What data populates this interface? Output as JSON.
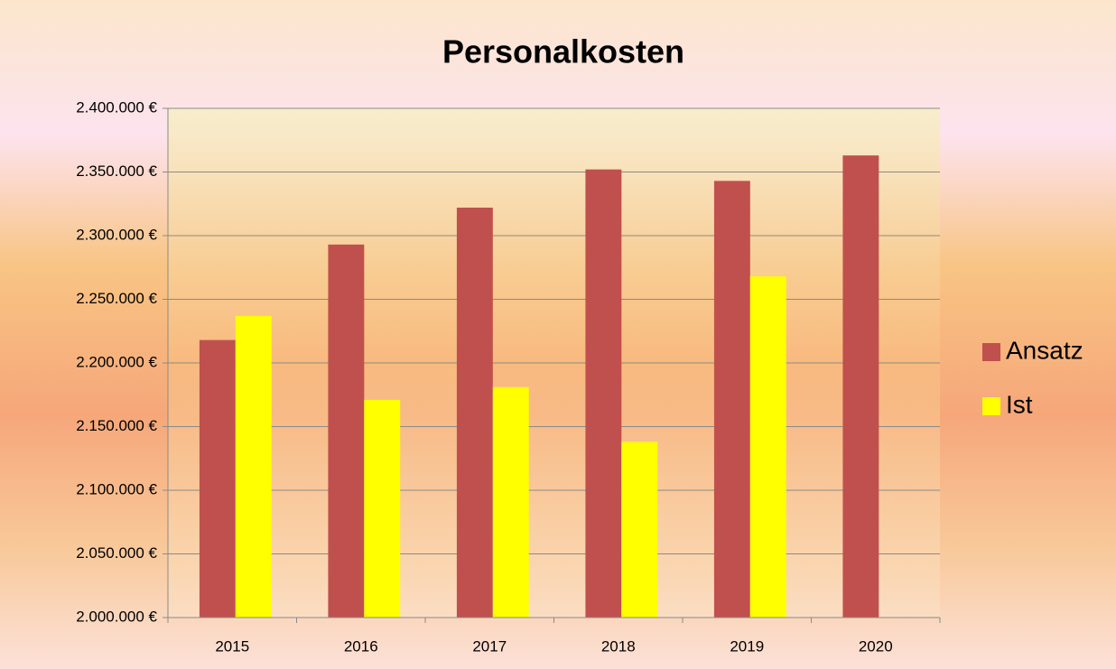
{
  "chart_data": {
    "type": "bar",
    "title": "Personalkosten",
    "categories": [
      "2015",
      "2016",
      "2017",
      "2018",
      "2019",
      "2020"
    ],
    "series": [
      {
        "name": "Ansatz",
        "color": "#c0504d",
        "values": [
          2218000,
          2293000,
          2322000,
          2352000,
          2343000,
          2363000
        ]
      },
      {
        "name": "Ist",
        "color": "#ffff00",
        "values": [
          2237000,
          2171000,
          2181000,
          2138000,
          2268000,
          null
        ]
      }
    ],
    "ylim": [
      2000000,
      2400000
    ],
    "yticks": [
      {
        "value": 2000000,
        "label": "2.000.000 €"
      },
      {
        "value": 2050000,
        "label": "2.050.000 €"
      },
      {
        "value": 2100000,
        "label": "2.100.000 €"
      },
      {
        "value": 2150000,
        "label": "2.150.000 €"
      },
      {
        "value": 2200000,
        "label": "2.200.000 €"
      },
      {
        "value": 2250000,
        "label": "2.250.000 €"
      },
      {
        "value": 2300000,
        "label": "2.300.000 €"
      },
      {
        "value": 2350000,
        "label": "2.350.000 €"
      },
      {
        "value": 2400000,
        "label": "2.400.000 €"
      }
    ],
    "grid": true,
    "legend": "right"
  }
}
